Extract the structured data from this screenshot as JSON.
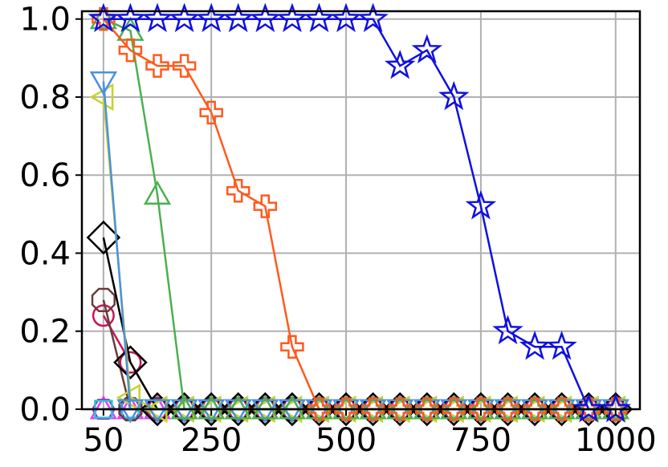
{
  "chart_data": {
    "type": "line",
    "title": "",
    "xlabel": "",
    "ylabel": "",
    "xlim": [
      10,
      1045
    ],
    "ylim": [
      0,
      1.02
    ],
    "grid": true,
    "legend": "none",
    "x_ticks": [
      50,
      250,
      500,
      750,
      1000
    ],
    "x_tick_labels": [
      "50",
      "250",
      "500",
      "750",
      "1000"
    ],
    "y_ticks": [
      0.0,
      0.2,
      0.4,
      0.6,
      0.8,
      1.0
    ],
    "y_tick_labels": [
      "0.0",
      "0.2",
      "0.4",
      "0.6",
      "0.8",
      "1.0"
    ],
    "x": [
      50,
      100,
      150,
      200,
      250,
      300,
      350,
      400,
      450,
      500,
      550,
      600,
      650,
      700,
      750,
      800,
      850,
      900,
      950,
      1000
    ],
    "series": [
      {
        "color": "#1010e0",
        "marker": "star",
        "values": [
          1.0,
          1.0,
          1.0,
          1.0,
          1.0,
          1.0,
          1.0,
          1.0,
          1.0,
          1.0,
          1.0,
          0.88,
          0.92,
          0.8,
          0.52,
          0.2,
          0.16,
          0.16,
          0.0,
          0.0
        ]
      },
      {
        "color": "#ff5a1e",
        "marker": "plus",
        "values": [
          1.0,
          0.92,
          0.88,
          0.88,
          0.76,
          0.56,
          0.52,
          0.16,
          0.0,
          0.0,
          0.0,
          0.0,
          0.0,
          0.0,
          0.0,
          0.0,
          0.0,
          0.0,
          0.0,
          0.0
        ]
      },
      {
        "color": "#4caf50",
        "marker": "triangle-up",
        "values": [
          1.0,
          0.97,
          0.55,
          0.0,
          0.0,
          0.0,
          0.0,
          0.0,
          0.0,
          0.0,
          0.0,
          0.0,
          0.0,
          0.0,
          0.0,
          0.0,
          0.0,
          0.0,
          0.0,
          0.0
        ]
      },
      {
        "color": "#4a90e2",
        "marker": "triangle-down",
        "values": [
          0.84,
          0.0,
          0.0,
          0.0,
          0.0,
          0.0,
          0.0,
          0.0,
          0.0,
          0.0,
          0.0,
          0.0,
          0.0,
          0.0,
          0.0,
          0.0,
          0.0,
          0.0,
          0.0,
          0.0
        ]
      },
      {
        "color": "#c8d22a",
        "marker": "triangle-left",
        "values": [
          0.8,
          0.03,
          0.0,
          0.0,
          0.0,
          0.0,
          0.0,
          0.0,
          0.0,
          0.0,
          0.0,
          0.0,
          0.0,
          0.0,
          0.0,
          0.0,
          0.0,
          0.0,
          0.0,
          0.0
        ]
      },
      {
        "color": "#000000",
        "marker": "diamond",
        "values": [
          0.44,
          0.12,
          0.0,
          0.0,
          0.0,
          0.0,
          0.0,
          0.0,
          0.0,
          0.0,
          0.0,
          0.0,
          0.0,
          0.0,
          0.0,
          0.0,
          0.0,
          0.0,
          0.0,
          0.0
        ]
      },
      {
        "color": "#6b3a3a",
        "marker": "octagon",
        "values": [
          0.28,
          0.0,
          0.0,
          0.0,
          0.0,
          0.0,
          0.0,
          0.0,
          0.0,
          0.0,
          0.0,
          0.0,
          0.0,
          0.0,
          0.0,
          0.0,
          0.0,
          0.0,
          0.0,
          0.0
        ]
      },
      {
        "color": "#c2185b",
        "marker": "circle",
        "values": [
          0.24,
          0.12,
          0.0,
          0.0,
          0.0,
          0.0,
          0.0,
          0.0,
          0.0,
          0.0,
          0.0,
          0.0,
          0.0,
          0.0,
          0.0,
          0.0,
          0.0,
          0.0,
          0.0,
          0.0
        ]
      },
      {
        "color": "#26c6da",
        "marker": "square",
        "values": [
          0.0,
          0.0,
          0.0,
          0.0,
          0.0,
          0.0,
          0.0,
          0.0,
          0.0,
          0.0,
          0.0,
          0.0,
          0.0,
          0.0,
          0.0,
          0.0,
          0.0,
          0.0,
          0.0,
          0.0
        ]
      },
      {
        "color": "#9c27b0",
        "marker": "hexagon",
        "values": [
          0.0,
          0.0,
          0.0,
          0.0,
          0.0,
          0.0,
          0.0,
          0.0,
          0.0,
          0.0,
          0.0,
          0.0,
          0.0,
          0.0,
          0.0,
          0.0,
          0.0,
          0.0,
          0.0,
          0.0
        ]
      },
      {
        "color": "#e040fb",
        "marker": "triangle-up",
        "values": [
          0.0,
          0.0,
          0.0,
          0.0,
          0.0,
          0.0,
          0.0,
          0.0,
          0.0,
          0.0,
          0.0,
          0.0,
          0.0,
          0.0,
          0.0,
          0.0,
          0.0,
          0.0,
          0.0,
          0.0
        ]
      }
    ]
  }
}
